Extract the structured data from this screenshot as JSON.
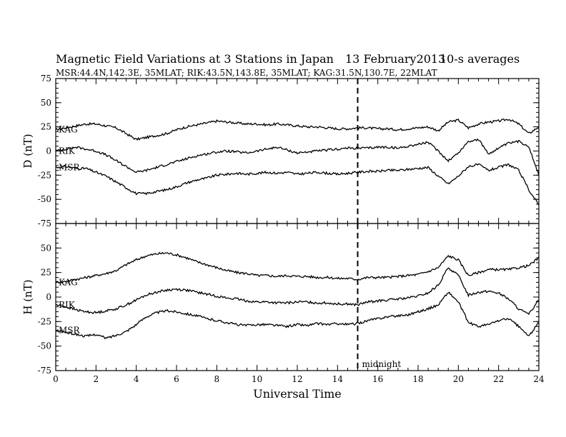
{
  "chart_data": [
    {
      "type": "line",
      "panel": "D",
      "title": "Magnetic Field Variations at 3 Stations in Japan",
      "date": "13 February2013",
      "averaging": "10-s averages",
      "subtitle": "MSR:44.4N,142.3E, 35MLAT;  RIK:43.5N,143.8E, 35MLAT;  KAG:31.5N,130.7E, 22MLAT",
      "ylabel": "D (nT)",
      "xlabel": "",
      "xlim": [
        0,
        24
      ],
      "ylim": [
        -75,
        75
      ],
      "yticks": [
        -75,
        -50,
        -25,
        0,
        25,
        50,
        75
      ],
      "xticks": [],
      "grid": false,
      "annotations": [
        {
          "text": "",
          "x": 15
        }
      ],
      "series": [
        {
          "name": "KAG",
          "x": [
            0,
            0.5,
            1,
            1.5,
            2,
            2.5,
            3,
            3.5,
            4,
            4.5,
            5,
            5.5,
            6,
            6.5,
            7,
            7.5,
            8,
            8.5,
            9,
            9.5,
            10,
            10.5,
            11,
            11.5,
            12,
            12.5,
            13,
            13.5,
            14,
            14.5,
            15,
            15.5,
            16,
            16.5,
            17,
            17.5,
            18,
            18.5,
            19,
            19.5,
            20,
            20.5,
            21,
            21.5,
            22,
            22.5,
            23,
            23.5,
            24
          ],
          "values": [
            22,
            24,
            26,
            28,
            28,
            26,
            24,
            18,
            12,
            14,
            16,
            18,
            22,
            25,
            27,
            29,
            31,
            30,
            29,
            28,
            28,
            27,
            28,
            27,
            26,
            25,
            25,
            24,
            23,
            23,
            24,
            24,
            23,
            23,
            22,
            23,
            24,
            25,
            21,
            30,
            32,
            24,
            28,
            30,
            31,
            33,
            28,
            18,
            25
          ]
        },
        {
          "name": "RIK",
          "x": [
            0,
            0.5,
            1,
            1.5,
            2,
            2.5,
            3,
            3.5,
            4,
            4.5,
            5,
            5.5,
            6,
            6.5,
            7,
            7.5,
            8,
            8.5,
            9,
            9.5,
            10,
            10.5,
            11,
            11.5,
            12,
            12.5,
            13,
            13.5,
            14,
            14.5,
            15,
            15.5,
            16,
            16.5,
            17,
            17.5,
            18,
            18.5,
            19,
            19.5,
            20,
            20.5,
            21,
            21.5,
            22,
            22.5,
            23,
            23.5,
            24
          ],
          "values": [
            0,
            2,
            4,
            2,
            0,
            -4,
            -10,
            -16,
            -22,
            -20,
            -17,
            -14,
            -11,
            -8,
            -5,
            -3,
            -1,
            0,
            -1,
            -2,
            0,
            2,
            4,
            1,
            -2,
            -1,
            0,
            1,
            2,
            3,
            3,
            3,
            4,
            4,
            3,
            5,
            7,
            9,
            0,
            -10,
            -2,
            10,
            12,
            -3,
            3,
            8,
            10,
            5,
            -25
          ]
        },
        {
          "name": "MSR",
          "x": [
            0,
            0.5,
            1,
            1.5,
            2,
            2.5,
            3,
            3.5,
            4,
            4.5,
            5,
            5.5,
            6,
            6.5,
            7,
            7.5,
            8,
            8.5,
            9,
            9.5,
            10,
            10.5,
            11,
            11.5,
            12,
            12.5,
            13,
            13.5,
            14,
            14.5,
            15,
            15.5,
            16,
            16.5,
            17,
            17.5,
            18,
            18.5,
            19,
            19.5,
            20,
            20.5,
            21,
            21.5,
            22,
            22.5,
            23,
            23.5,
            24
          ],
          "values": [
            -17,
            -16,
            -18,
            -18,
            -22,
            -26,
            -32,
            -38,
            -44,
            -44,
            -42,
            -40,
            -37,
            -33,
            -30,
            -28,
            -25,
            -24,
            -23,
            -24,
            -23,
            -22,
            -23,
            -22,
            -24,
            -23,
            -22,
            -23,
            -24,
            -23,
            -22,
            -21,
            -21,
            -20,
            -20,
            -19,
            -18,
            -17,
            -26,
            -34,
            -26,
            -16,
            -14,
            -20,
            -17,
            -14,
            -20,
            -40,
            -56
          ]
        }
      ]
    },
    {
      "type": "line",
      "panel": "H",
      "title": "",
      "ylabel": "H (nT)",
      "xlabel": "Universal Time",
      "xlim": [
        0,
        24
      ],
      "ylim": [
        -75,
        75
      ],
      "yticks": [
        -75,
        -50,
        -25,
        0,
        25,
        50
      ],
      "xticks": [
        0,
        2,
        4,
        6,
        8,
        10,
        12,
        14,
        16,
        18,
        20,
        22,
        24
      ],
      "grid": false,
      "annotations": [
        {
          "text": "midnight",
          "x": 15
        }
      ],
      "series": [
        {
          "name": "KAG",
          "x": [
            0,
            0.5,
            1,
            1.5,
            2,
            2.5,
            3,
            3.5,
            4,
            4.5,
            5,
            5.5,
            6,
            6.5,
            7,
            7.5,
            8,
            8.5,
            9,
            9.5,
            10,
            10.5,
            11,
            11.5,
            12,
            12.5,
            13,
            13.5,
            14,
            14.5,
            15,
            15.5,
            16,
            16.5,
            17,
            17.5,
            18,
            18.5,
            19,
            19.5,
            20,
            20.5,
            21,
            21.5,
            22,
            22.5,
            23,
            23.5,
            24
          ],
          "values": [
            15,
            16,
            18,
            20,
            22,
            24,
            27,
            33,
            38,
            42,
            44,
            45,
            43,
            40,
            36,
            33,
            30,
            27,
            25,
            24,
            22,
            22,
            21,
            22,
            21,
            21,
            20,
            20,
            19,
            19,
            18,
            20,
            20,
            20,
            21,
            22,
            23,
            26,
            30,
            42,
            38,
            22,
            25,
            28,
            28,
            28,
            30,
            32,
            40
          ]
        },
        {
          "name": "RIK",
          "x": [
            0,
            0.5,
            1,
            1.5,
            2,
            2.5,
            3,
            3.5,
            4,
            4.5,
            5,
            5.5,
            6,
            6.5,
            7,
            7.5,
            8,
            8.5,
            9,
            9.5,
            10,
            10.5,
            11,
            11.5,
            12,
            12.5,
            13,
            13.5,
            14,
            14.5,
            15,
            15.5,
            16,
            16.5,
            17,
            17.5,
            18,
            18.5,
            19,
            19.5,
            20,
            20.5,
            21,
            21.5,
            22,
            22.5,
            23,
            23.5,
            24
          ],
          "values": [
            -8,
            -10,
            -13,
            -15,
            -16,
            -14,
            -12,
            -8,
            -3,
            2,
            5,
            7,
            8,
            7,
            5,
            3,
            1,
            -1,
            -2,
            -4,
            -5,
            -5,
            -6,
            -6,
            -5,
            -5,
            -6,
            -6,
            -7,
            -7,
            -8,
            -5,
            -4,
            -3,
            -2,
            -1,
            1,
            4,
            12,
            30,
            22,
            2,
            5,
            6,
            4,
            -2,
            -12,
            -18,
            -2
          ]
        },
        {
          "name": "MSR",
          "x": [
            0,
            0.5,
            1,
            1.5,
            2,
            2.5,
            3,
            3.5,
            4,
            4.5,
            5,
            5.5,
            6,
            6.5,
            7,
            7.5,
            8,
            8.5,
            9,
            9.5,
            10,
            10.5,
            11,
            11.5,
            12,
            12.5,
            13,
            13.5,
            14,
            14.5,
            15,
            15.5,
            16,
            16.5,
            17,
            17.5,
            18,
            18.5,
            19,
            19.5,
            20,
            20.5,
            21,
            21.5,
            22,
            22.5,
            23,
            23.5,
            24
          ],
          "values": [
            -34,
            -36,
            -38,
            -40,
            -38,
            -42,
            -39,
            -35,
            -28,
            -20,
            -16,
            -14,
            -15,
            -17,
            -19,
            -22,
            -24,
            -26,
            -28,
            -29,
            -28,
            -28,
            -29,
            -30,
            -28,
            -29,
            -27,
            -28,
            -27,
            -28,
            -27,
            -24,
            -22,
            -20,
            -19,
            -18,
            -15,
            -12,
            -8,
            5,
            -5,
            -26,
            -30,
            -28,
            -24,
            -22,
            -30,
            -40,
            -26
          ]
        }
      ]
    }
  ]
}
